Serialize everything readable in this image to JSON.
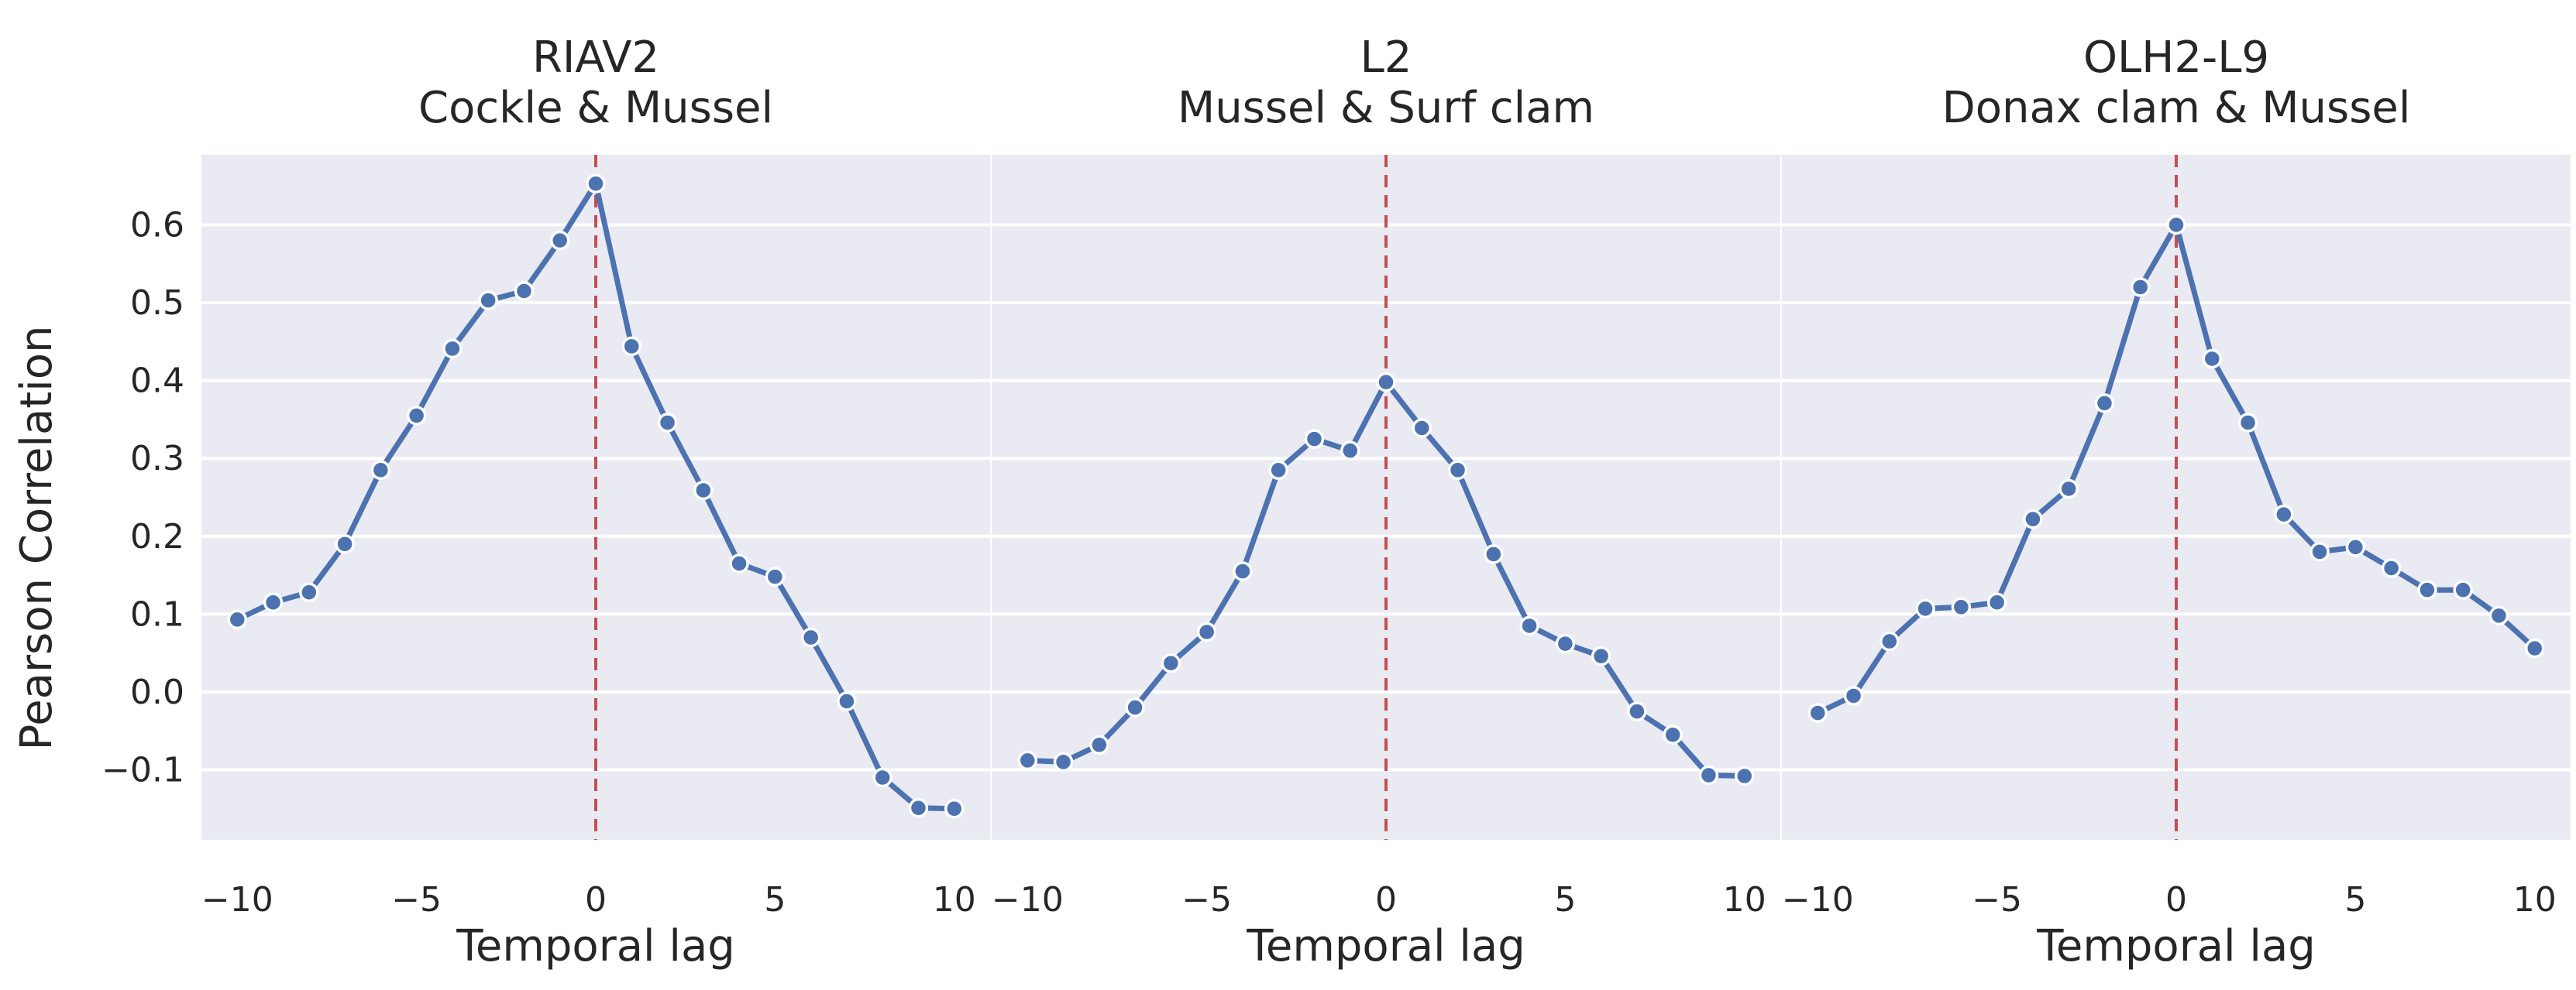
{
  "figure": {
    "shared_ylabel": "Pearson Correlation",
    "xlabel": "Temporal lag",
    "x_ticks": [
      -10,
      -5,
      0,
      5,
      10
    ],
    "x_tick_labels": [
      "−10",
      "−5",
      "0",
      "5",
      "10"
    ],
    "y_ticks": [
      -0.1,
      0.0,
      0.1,
      0.2,
      0.3,
      0.4,
      0.5,
      0.6
    ],
    "y_tick_labels": [
      "−0.1",
      "0.0",
      "0.1",
      "0.2",
      "0.3",
      "0.4",
      "0.5",
      "0.6"
    ],
    "colors": {
      "line": "#4c72b0",
      "marker_edge": "#ffffff",
      "zero_lag_line": "#c44e52",
      "panel_background": "#eaeaf2",
      "grid": "#ffffff"
    }
  },
  "chart_data": [
    {
      "type": "line",
      "title": "RIAV2",
      "subtitle": "Cockle & Mussel",
      "xlabel": "Temporal lag",
      "ylabel": "Pearson Correlation",
      "xlim": [
        -11,
        11
      ],
      "ylim": [
        -0.19,
        0.69
      ],
      "grid": true,
      "vline_x": 0,
      "x": [
        -10,
        -9,
        -8,
        -7,
        -6,
        -5,
        -4,
        -3,
        -2,
        -1,
        0,
        1,
        2,
        3,
        4,
        5,
        6,
        7,
        8,
        9,
        10
      ],
      "values": [
        0.093,
        0.115,
        0.128,
        0.19,
        0.285,
        0.355,
        0.441,
        0.503,
        0.515,
        0.58,
        0.653,
        0.444,
        0.346,
        0.259,
        0.165,
        0.148,
        0.07,
        -0.012,
        -0.11,
        -0.149,
        -0.15
      ]
    },
    {
      "type": "line",
      "title": "L2",
      "subtitle": "Mussel & Surf clam",
      "xlabel": "Temporal lag",
      "ylabel": "",
      "xlim": [
        -11,
        11
      ],
      "ylim": [
        -0.19,
        0.69
      ],
      "grid": true,
      "vline_x": 0,
      "x": [
        -10,
        -9,
        -8,
        -7,
        -6,
        -5,
        -4,
        -3,
        -2,
        -1,
        0,
        1,
        2,
        3,
        4,
        5,
        6,
        7,
        8,
        9,
        10
      ],
      "values": [
        -0.088,
        -0.09,
        -0.068,
        -0.02,
        0.037,
        0.077,
        0.155,
        0.285,
        0.325,
        0.31,
        0.398,
        0.339,
        0.285,
        0.177,
        0.085,
        0.062,
        0.046,
        -0.025,
        -0.055,
        -0.107,
        -0.108
      ]
    },
    {
      "type": "line",
      "title": "OLH2-L9",
      "subtitle": "Donax clam & Mussel",
      "xlabel": "Temporal lag",
      "ylabel": "",
      "xlim": [
        -11,
        11
      ],
      "ylim": [
        -0.19,
        0.69
      ],
      "grid": true,
      "vline_x": 0,
      "x": [
        -10,
        -9,
        -8,
        -7,
        -6,
        -5,
        -4,
        -3,
        -2,
        -1,
        0,
        1,
        2,
        3,
        4,
        5,
        6,
        7,
        8,
        9,
        10
      ],
      "values": [
        -0.027,
        -0.005,
        0.065,
        0.107,
        0.109,
        0.115,
        0.222,
        0.261,
        0.371,
        0.52,
        0.6,
        0.428,
        0.346,
        0.228,
        0.18,
        0.186,
        0.159,
        0.131,
        0.131,
        0.098,
        0.056
      ]
    }
  ]
}
